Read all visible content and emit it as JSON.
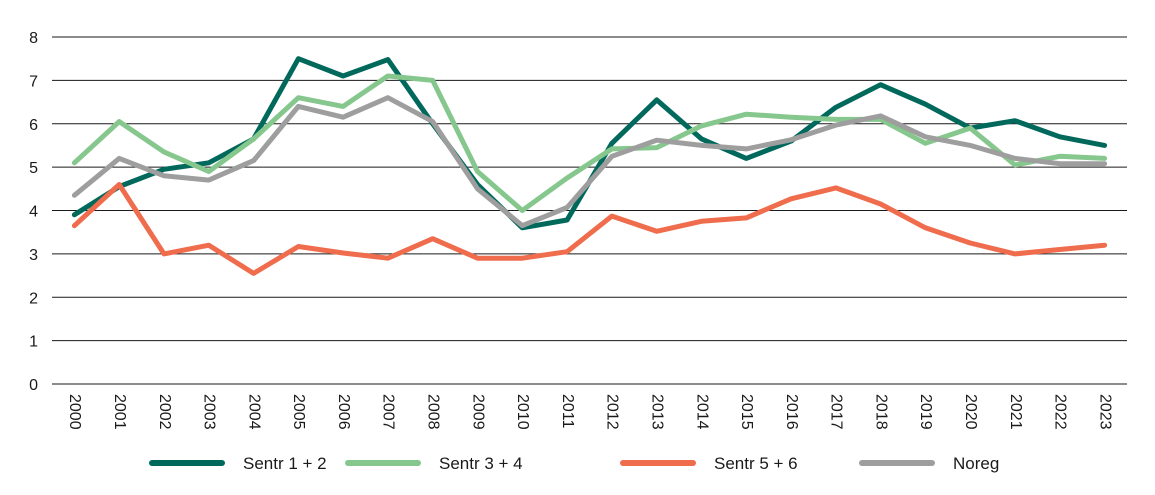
{
  "chart_data": {
    "type": "line",
    "title": "",
    "xlabel": "",
    "ylabel": "",
    "ylim": [
      0,
      8
    ],
    "yticks": [
      0,
      1,
      2,
      3,
      4,
      5,
      6,
      7,
      8
    ],
    "grid": "horizontal",
    "legend_position": "bottom",
    "categories": [
      "2000",
      "2001",
      "2002",
      "2003",
      "2004",
      "2005",
      "2006",
      "2007",
      "2008",
      "2009",
      "2010",
      "2011",
      "2012",
      "2013",
      "2014",
      "2015",
      "2016",
      "2017",
      "2018",
      "2019",
      "2020",
      "2021",
      "2022",
      "2023"
    ],
    "series": [
      {
        "name": "Sentr 1 + 2",
        "color": "#00695c",
        "values": [
          3.9,
          4.55,
          4.95,
          5.1,
          5.65,
          7.5,
          7.1,
          7.48,
          6.0,
          4.6,
          3.6,
          3.78,
          5.55,
          6.55,
          5.65,
          5.2,
          5.6,
          6.38,
          6.9,
          6.45,
          5.9,
          6.07,
          5.7,
          5.5
        ]
      },
      {
        "name": "Sentr 3 + 4",
        "color": "#86c78e",
        "values": [
          5.1,
          6.05,
          5.35,
          4.9,
          5.65,
          6.6,
          6.4,
          7.1,
          7.0,
          4.9,
          4.0,
          4.75,
          5.42,
          5.45,
          5.95,
          6.22,
          6.15,
          6.1,
          6.1,
          5.55,
          5.9,
          5.05,
          5.25,
          5.2
        ]
      },
      {
        "name": "Sentr 5 + 6",
        "color": "#ef6c4d",
        "values": [
          3.65,
          4.6,
          3.0,
          3.2,
          2.55,
          3.17,
          3.02,
          2.9,
          3.35,
          2.9,
          2.9,
          3.05,
          3.87,
          3.52,
          3.75,
          3.83,
          4.27,
          4.52,
          4.15,
          3.6,
          3.25,
          3.0,
          3.1,
          3.2
        ]
      },
      {
        "name": "Noreg",
        "color": "#9e9e9e",
        "values": [
          4.35,
          5.2,
          4.8,
          4.7,
          5.15,
          6.4,
          6.15,
          6.6,
          6.05,
          4.5,
          3.65,
          4.07,
          5.25,
          5.62,
          5.5,
          5.42,
          5.63,
          5.97,
          6.18,
          5.7,
          5.5,
          5.2,
          5.08,
          5.08
        ]
      }
    ]
  }
}
